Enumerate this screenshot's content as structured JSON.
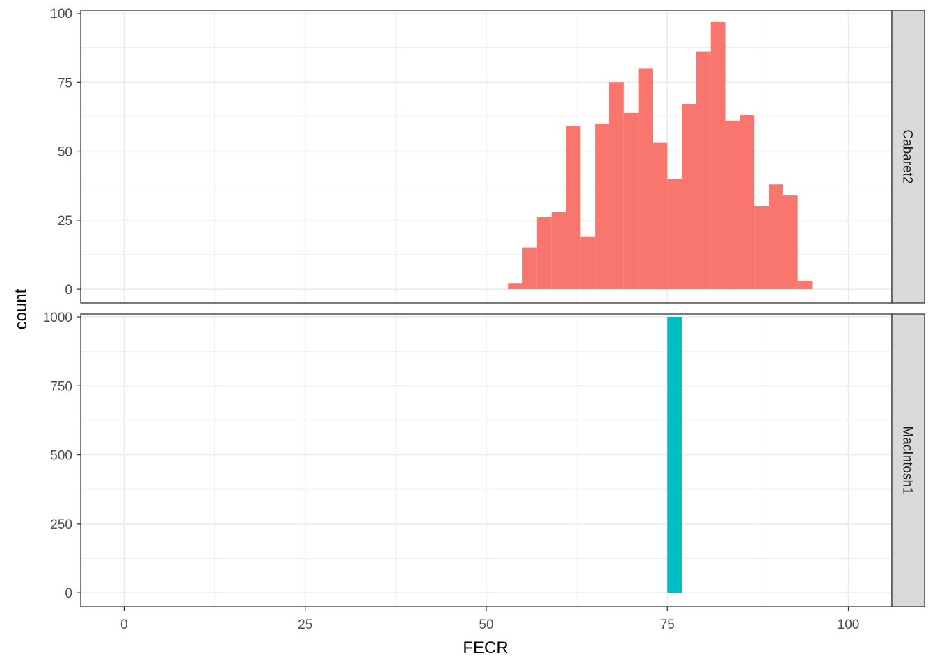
{
  "chart_data": {
    "type": "histogram",
    "xlabel": "FECR",
    "ylabel": "count",
    "x_ticks": [
      0,
      25,
      50,
      75,
      100
    ],
    "xlim": [
      -6,
      106
    ],
    "bin_width": 2,
    "grid": true,
    "legend": "none",
    "panels": [
      {
        "name": "Cabaret2",
        "color": "#F8766D",
        "ylim": [
          -5,
          101
        ],
        "y_ticks": [
          0,
          25,
          50,
          75,
          100
        ],
        "bins": [
          {
            "x0": 53,
            "x1": 55,
            "count": 2
          },
          {
            "x0": 55,
            "x1": 57,
            "count": 15
          },
          {
            "x0": 57,
            "x1": 59,
            "count": 26
          },
          {
            "x0": 59,
            "x1": 61,
            "count": 28
          },
          {
            "x0": 61,
            "x1": 63,
            "count": 59
          },
          {
            "x0": 63,
            "x1": 65,
            "count": 19
          },
          {
            "x0": 65,
            "x1": 67,
            "count": 60
          },
          {
            "x0": 67,
            "x1": 69,
            "count": 75
          },
          {
            "x0": 69,
            "x1": 71,
            "count": 64
          },
          {
            "x0": 71,
            "x1": 73,
            "count": 80
          },
          {
            "x0": 73,
            "x1": 75,
            "count": 53
          },
          {
            "x0": 75,
            "x1": 77,
            "count": 40
          },
          {
            "x0": 77,
            "x1": 79,
            "count": 67
          },
          {
            "x0": 79,
            "x1": 81,
            "count": 86
          },
          {
            "x0": 81,
            "x1": 83,
            "count": 97
          },
          {
            "x0": 83,
            "x1": 85,
            "count": 61
          },
          {
            "x0": 85,
            "x1": 87,
            "count": 63
          },
          {
            "x0": 87,
            "x1": 89,
            "count": 30
          },
          {
            "x0": 89,
            "x1": 91,
            "count": 38
          },
          {
            "x0": 91,
            "x1": 93,
            "count": 34
          },
          {
            "x0": 93,
            "x1": 95,
            "count": 3
          }
        ]
      },
      {
        "name": "MacIntosh1",
        "color": "#00BFC4",
        "ylim": [
          -50,
          1010
        ],
        "y_ticks": [
          0,
          250,
          500,
          750,
          1000
        ],
        "bins": [
          {
            "x0": 75,
            "x1": 77,
            "count": 1000
          }
        ]
      }
    ]
  }
}
